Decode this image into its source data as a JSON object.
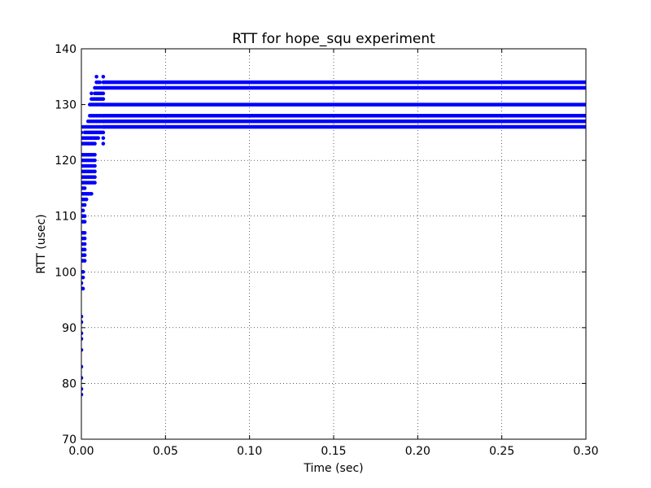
{
  "chart_data": {
    "type": "scatter",
    "title": "RTT for hope_squ experiment",
    "xlabel": "Time (sec)",
    "ylabel": "RTT (usec)",
    "xlim": [
      0.0,
      0.3
    ],
    "ylim": [
      70,
      140
    ],
    "xticks": [
      0.0,
      0.05,
      0.1,
      0.15,
      0.2,
      0.25,
      0.3
    ],
    "xtick_labels": [
      "0.00",
      "0.05",
      "0.10",
      "0.15",
      "0.20",
      "0.25",
      "0.30"
    ],
    "yticks": [
      70,
      80,
      90,
      100,
      110,
      120,
      130,
      140
    ],
    "ytick_labels": [
      "70",
      "80",
      "90",
      "100",
      "110",
      "120",
      "130",
      "140"
    ],
    "grid": true,
    "marker_color": "#0000ff",
    "series": [
      {
        "points": [
          {
            "x": 0.0,
            "y": 78
          },
          {
            "x": 0.0,
            "y": 79
          },
          {
            "x": 0.0,
            "y": 81
          },
          {
            "x": 0.0,
            "y": 83
          },
          {
            "x": 0.0,
            "y": 86
          },
          {
            "x": 0.0,
            "y": 88
          },
          {
            "x": 0.0,
            "y": 89
          },
          {
            "x": 0.0,
            "y": 91
          },
          {
            "x": 0.0,
            "y": 92
          },
          {
            "x": 0.0,
            "y": 97
          },
          {
            "x": 0.0,
            "y": 98
          },
          {
            "x": 0.0,
            "y": 99
          },
          {
            "x": 0.0,
            "y": 100
          },
          {
            "x": 0.0,
            "y": 102
          },
          {
            "x": 0.0,
            "y": 103
          },
          {
            "x": 0.0,
            "y": 104
          },
          {
            "x": 0.0,
            "y": 105
          },
          {
            "x": 0.0,
            "y": 106
          },
          {
            "x": 0.0,
            "y": 107
          },
          {
            "x": 0.0,
            "y": 109
          },
          {
            "x": 0.0,
            "y": 110
          },
          {
            "x": 0.0,
            "y": 111
          },
          {
            "x": 0.0,
            "y": 112
          },
          {
            "x": 0.0,
            "y": 113
          },
          {
            "x": 0.0,
            "y": 114
          },
          {
            "x": 0.0,
            "y": 115
          },
          {
            "x": 0.0,
            "y": 116
          },
          {
            "x": 0.0,
            "y": 117
          },
          {
            "x": 0.0,
            "y": 118
          },
          {
            "x": 0.0,
            "y": 119
          },
          {
            "x": 0.0,
            "y": 120
          },
          {
            "x": 0.0,
            "y": 121
          },
          {
            "x": 0.0,
            "y": 123
          },
          {
            "x": 0.0,
            "y": 124
          },
          {
            "x": 0.0,
            "y": 125
          },
          {
            "x": 0.001,
            "y": 97
          },
          {
            "x": 0.001,
            "y": 99
          },
          {
            "x": 0.001,
            "y": 100
          },
          {
            "x": 0.001,
            "y": 102
          },
          {
            "x": 0.001,
            "y": 103
          },
          {
            "x": 0.001,
            "y": 104
          },
          {
            "x": 0.001,
            "y": 105
          },
          {
            "x": 0.001,
            "y": 106
          },
          {
            "x": 0.001,
            "y": 107
          },
          {
            "x": 0.001,
            "y": 109
          },
          {
            "x": 0.001,
            "y": 110
          },
          {
            "x": 0.001,
            "y": 111
          },
          {
            "x": 0.001,
            "y": 112
          },
          {
            "x": 0.001,
            "y": 113
          },
          {
            "x": 0.001,
            "y": 114
          },
          {
            "x": 0.001,
            "y": 115
          },
          {
            "x": 0.001,
            "y": 116
          },
          {
            "x": 0.001,
            "y": 117
          },
          {
            "x": 0.001,
            "y": 118
          },
          {
            "x": 0.001,
            "y": 119
          },
          {
            "x": 0.001,
            "y": 120
          },
          {
            "x": 0.001,
            "y": 121
          },
          {
            "x": 0.001,
            "y": 123
          },
          {
            "x": 0.001,
            "y": 124
          },
          {
            "x": 0.001,
            "y": 126
          },
          {
            "x": 0.002,
            "y": 102
          },
          {
            "x": 0.002,
            "y": 103
          },
          {
            "x": 0.002,
            "y": 104
          },
          {
            "x": 0.002,
            "y": 105
          },
          {
            "x": 0.002,
            "y": 106
          },
          {
            "x": 0.002,
            "y": 107
          },
          {
            "x": 0.002,
            "y": 109
          },
          {
            "x": 0.002,
            "y": 110
          },
          {
            "x": 0.002,
            "y": 112
          },
          {
            "x": 0.002,
            "y": 113
          },
          {
            "x": 0.002,
            "y": 114
          },
          {
            "x": 0.002,
            "y": 115
          },
          {
            "x": 0.002,
            "y": 116
          },
          {
            "x": 0.002,
            "y": 117
          },
          {
            "x": 0.002,
            "y": 118
          },
          {
            "x": 0.002,
            "y": 119
          },
          {
            "x": 0.002,
            "y": 120
          },
          {
            "x": 0.002,
            "y": 121
          },
          {
            "x": 0.002,
            "y": 123
          },
          {
            "x": 0.002,
            "y": 124
          },
          {
            "x": 0.002,
            "y": 125
          },
          {
            "x": 0.002,
            "y": 126
          },
          {
            "x": 0.003,
            "y": 113
          },
          {
            "x": 0.003,
            "y": 114
          },
          {
            "x": 0.003,
            "y": 116
          },
          {
            "x": 0.003,
            "y": 117
          },
          {
            "x": 0.003,
            "y": 118
          },
          {
            "x": 0.003,
            "y": 119
          },
          {
            "x": 0.003,
            "y": 120
          },
          {
            "x": 0.003,
            "y": 121
          },
          {
            "x": 0.003,
            "y": 123
          },
          {
            "x": 0.003,
            "y": 124
          },
          {
            "x": 0.003,
            "y": 125
          },
          {
            "x": 0.003,
            "y": 126
          },
          {
            "x": 0.004,
            "y": 114
          },
          {
            "x": 0.004,
            "y": 116
          },
          {
            "x": 0.004,
            "y": 117
          },
          {
            "x": 0.004,
            "y": 118
          },
          {
            "x": 0.004,
            "y": 119
          },
          {
            "x": 0.004,
            "y": 120
          },
          {
            "x": 0.004,
            "y": 121
          },
          {
            "x": 0.004,
            "y": 123
          },
          {
            "x": 0.004,
            "y": 124
          },
          {
            "x": 0.004,
            "y": 125
          },
          {
            "x": 0.004,
            "y": 126
          },
          {
            "x": 0.004,
            "y": 127
          },
          {
            "x": 0.005,
            "y": 114
          },
          {
            "x": 0.005,
            "y": 116
          },
          {
            "x": 0.005,
            "y": 117
          },
          {
            "x": 0.005,
            "y": 118
          },
          {
            "x": 0.005,
            "y": 119
          },
          {
            "x": 0.005,
            "y": 120
          },
          {
            "x": 0.005,
            "y": 121
          },
          {
            "x": 0.005,
            "y": 123
          },
          {
            "x": 0.005,
            "y": 124
          },
          {
            "x": 0.005,
            "y": 125
          },
          {
            "x": 0.005,
            "y": 126
          },
          {
            "x": 0.005,
            "y": 127
          },
          {
            "x": 0.005,
            "y": 128
          },
          {
            "x": 0.005,
            "y": 130
          },
          {
            "x": 0.006,
            "y": 114
          },
          {
            "x": 0.006,
            "y": 116
          },
          {
            "x": 0.006,
            "y": 117
          },
          {
            "x": 0.006,
            "y": 118
          },
          {
            "x": 0.006,
            "y": 119
          },
          {
            "x": 0.006,
            "y": 120
          },
          {
            "x": 0.006,
            "y": 121
          },
          {
            "x": 0.006,
            "y": 123
          },
          {
            "x": 0.006,
            "y": 124
          },
          {
            "x": 0.006,
            "y": 125
          },
          {
            "x": 0.006,
            "y": 126
          },
          {
            "x": 0.006,
            "y": 127
          },
          {
            "x": 0.006,
            "y": 128
          },
          {
            "x": 0.006,
            "y": 130
          },
          {
            "x": 0.006,
            "y": 131
          },
          {
            "x": 0.006,
            "y": 132
          },
          {
            "x": 0.007,
            "y": 116
          },
          {
            "x": 0.007,
            "y": 117
          },
          {
            "x": 0.007,
            "y": 118
          },
          {
            "x": 0.007,
            "y": 119
          },
          {
            "x": 0.007,
            "y": 120
          },
          {
            "x": 0.007,
            "y": 121
          },
          {
            "x": 0.007,
            "y": 123
          },
          {
            "x": 0.007,
            "y": 124
          },
          {
            "x": 0.007,
            "y": 125
          },
          {
            "x": 0.007,
            "y": 126
          },
          {
            "x": 0.007,
            "y": 127
          },
          {
            "x": 0.007,
            "y": 128
          },
          {
            "x": 0.007,
            "y": 130
          },
          {
            "x": 0.007,
            "y": 131
          },
          {
            "x": 0.008,
            "y": 116
          },
          {
            "x": 0.008,
            "y": 117
          },
          {
            "x": 0.008,
            "y": 118
          },
          {
            "x": 0.008,
            "y": 119
          },
          {
            "x": 0.008,
            "y": 120
          },
          {
            "x": 0.008,
            "y": 121
          },
          {
            "x": 0.008,
            "y": 123
          },
          {
            "x": 0.008,
            "y": 124
          },
          {
            "x": 0.008,
            "y": 125
          },
          {
            "x": 0.008,
            "y": 126
          },
          {
            "x": 0.008,
            "y": 127
          },
          {
            "x": 0.008,
            "y": 128
          },
          {
            "x": 0.008,
            "y": 130
          },
          {
            "x": 0.008,
            "y": 131
          },
          {
            "x": 0.008,
            "y": 132
          },
          {
            "x": 0.008,
            "y": 133
          },
          {
            "x": 0.009,
            "y": 124
          },
          {
            "x": 0.009,
            "y": 125
          },
          {
            "x": 0.009,
            "y": 126
          },
          {
            "x": 0.009,
            "y": 127
          },
          {
            "x": 0.009,
            "y": 128
          },
          {
            "x": 0.009,
            "y": 130
          },
          {
            "x": 0.009,
            "y": 131
          },
          {
            "x": 0.009,
            "y": 132
          },
          {
            "x": 0.009,
            "y": 133
          },
          {
            "x": 0.009,
            "y": 134
          },
          {
            "x": 0.009,
            "y": 135
          },
          {
            "x": 0.01,
            "y": 124
          },
          {
            "x": 0.01,
            "y": 125
          },
          {
            "x": 0.01,
            "y": 126
          },
          {
            "x": 0.01,
            "y": 127
          },
          {
            "x": 0.01,
            "y": 128
          },
          {
            "x": 0.01,
            "y": 130
          },
          {
            "x": 0.01,
            "y": 131
          },
          {
            "x": 0.01,
            "y": 132
          },
          {
            "x": 0.01,
            "y": 133
          },
          {
            "x": 0.01,
            "y": 134
          },
          {
            "x": 0.011,
            "y": 125
          },
          {
            "x": 0.011,
            "y": 126
          },
          {
            "x": 0.011,
            "y": 127
          },
          {
            "x": 0.011,
            "y": 128
          },
          {
            "x": 0.011,
            "y": 130
          },
          {
            "x": 0.011,
            "y": 131
          },
          {
            "x": 0.011,
            "y": 132
          },
          {
            "x": 0.011,
            "y": 133
          },
          {
            "x": 0.011,
            "y": 134
          },
          {
            "x": 0.012,
            "y": 125
          },
          {
            "x": 0.012,
            "y": 126
          },
          {
            "x": 0.012,
            "y": 127
          },
          {
            "x": 0.012,
            "y": 128
          },
          {
            "x": 0.012,
            "y": 130
          },
          {
            "x": 0.012,
            "y": 131
          },
          {
            "x": 0.012,
            "y": 132
          },
          {
            "x": 0.012,
            "y": 133
          },
          {
            "x": 0.013,
            "y": 123
          },
          {
            "x": 0.013,
            "y": 124
          },
          {
            "x": 0.013,
            "y": 125
          },
          {
            "x": 0.013,
            "y": 126
          },
          {
            "x": 0.013,
            "y": 127
          },
          {
            "x": 0.013,
            "y": 128
          },
          {
            "x": 0.013,
            "y": 130
          },
          {
            "x": 0.013,
            "y": 131
          },
          {
            "x": 0.013,
            "y": 132
          },
          {
            "x": 0.013,
            "y": 133
          },
          {
            "x": 0.013,
            "y": 134
          },
          {
            "x": 0.013,
            "y": 135
          }
        ],
        "bands": [
          {
            "y": 134,
            "x_start": 0.013,
            "x_end": 0.3
          },
          {
            "y": 133,
            "x_start": 0.013,
            "x_end": 0.3
          },
          {
            "y": 130,
            "x_start": 0.013,
            "x_end": 0.3
          },
          {
            "y": 128,
            "x_start": 0.013,
            "x_end": 0.3
          },
          {
            "y": 127,
            "x_start": 0.013,
            "x_end": 0.3
          },
          {
            "y": 126,
            "x_start": 0.013,
            "x_end": 0.3
          }
        ]
      }
    ]
  }
}
